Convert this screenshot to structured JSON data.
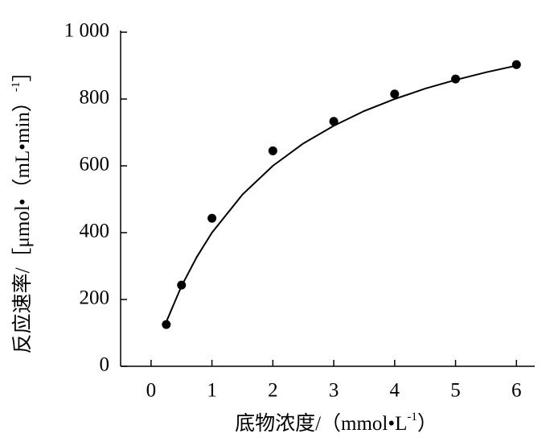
{
  "chart_data": {
    "type": "scatter",
    "x_label": {
      "text": "底物浓度/（mmol•L",
      "sup": "-1",
      "end": "）"
    },
    "y_label": {
      "text": "反应速率/［μmol•（mL•min）",
      "sup": "-1",
      "end": "］"
    },
    "x": [
      0.25,
      0.5,
      1,
      2,
      3,
      4,
      5,
      6
    ],
    "values": [
      125,
      243,
      443,
      645,
      733,
      815,
      860,
      903
    ],
    "color": "#000000",
    "curve": {
      "x": [
        0.25,
        0.5,
        0.75,
        1,
        1.5,
        2,
        2.5,
        3,
        3.5,
        4,
        4.5,
        5,
        5.5,
        6
      ],
      "values": [
        133,
        240,
        327,
        400,
        514,
        600,
        667,
        720,
        764,
        800,
        831,
        857,
        880,
        900
      ]
    },
    "xlim": [
      -0.5,
      6.3
    ],
    "xticks": [
      0,
      1,
      2,
      3,
      4,
      5,
      6
    ],
    "ylim": [
      0,
      1000
    ],
    "yticks": [
      0,
      200,
      400,
      600,
      800,
      {
        "value": 1000,
        "label": "1 000"
      }
    ]
  }
}
